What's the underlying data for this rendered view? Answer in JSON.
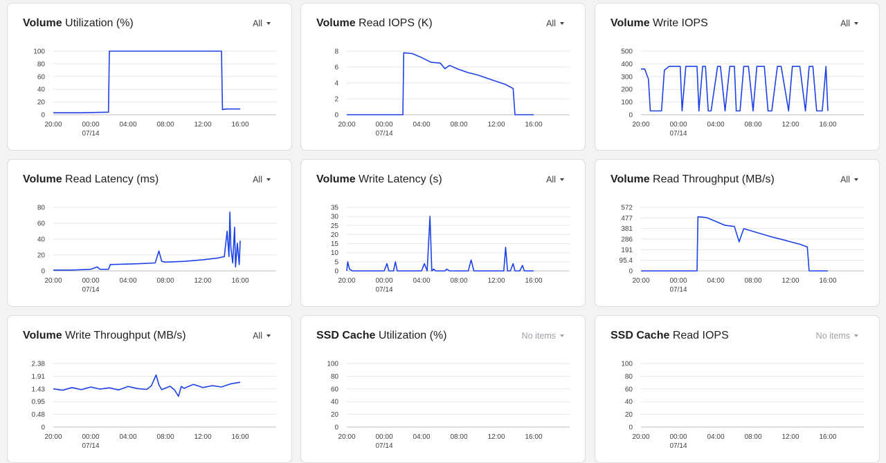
{
  "colors": {
    "line": "#1a40e8",
    "grid": "#e6e6e6",
    "axis": "#bdbdbd"
  },
  "x_ticks": [
    "20:00",
    "00:00",
    "04:00",
    "08:00",
    "12:00",
    "16:00"
  ],
  "x_date": "07/14",
  "cards": [
    {
      "title_bold": "Volume",
      "title_rest": " Utilization (%)",
      "filter": "All",
      "filter_disabled": false,
      "chart_data": {
        "type": "line",
        "title": "Volume Utilization (%)",
        "ylabels": [
          "100",
          "80",
          "60",
          "40",
          "20",
          "0"
        ],
        "ylim": [
          0,
          100
        ],
        "x_hours_from_20": [
          0,
          3,
          5.9,
          6.0,
          18.0,
          18.1,
          18.5,
          20
        ],
        "y": [
          3,
          3,
          4,
          100,
          100,
          8,
          9,
          9
        ]
      }
    },
    {
      "title_bold": "Volume",
      "title_rest": " Read IOPS (K)",
      "filter": "All",
      "filter_disabled": false,
      "chart_data": {
        "type": "line",
        "title": "Volume Read IOPS (K)",
        "ylabels": [
          "8",
          "6",
          "4",
          "2",
          "0"
        ],
        "ylim": [
          0,
          8
        ],
        "x_hours_from_20": [
          0,
          6.0,
          6.1,
          7,
          8,
          9,
          10,
          10.5,
          11,
          12,
          13,
          14,
          15,
          16,
          17,
          17.8,
          18.0,
          20
        ],
        "y": [
          0,
          0,
          7.8,
          7.7,
          7.2,
          6.6,
          6.5,
          5.8,
          6.2,
          5.7,
          5.3,
          5.0,
          4.6,
          4.2,
          3.8,
          3.3,
          0,
          0
        ]
      }
    },
    {
      "title_bold": "Volume",
      "title_rest": " Write IOPS",
      "filter": "All",
      "filter_disabled": false,
      "chart_data": {
        "type": "line",
        "title": "Volume Write IOPS",
        "ylabels": [
          "500",
          "400",
          "300",
          "200",
          "100",
          "0"
        ],
        "ylim": [
          0,
          500
        ],
        "x_hours_from_20": [
          0,
          0.4,
          0.8,
          1.0,
          2.0,
          2.2,
          2.5,
          3.0,
          4.2,
          4.4,
          4.8,
          5.0,
          6.0,
          6.2,
          6.6,
          6.9,
          7.2,
          7.5,
          8.2,
          8.5,
          9.0,
          9.5,
          10.0,
          10.2,
          10.6,
          11.0,
          11.5,
          12.0,
          12.4,
          13.2,
          13.6,
          14.0,
          14.6,
          15.0,
          15.8,
          16.2,
          16.6,
          17.0,
          17.6,
          18.0,
          18.4,
          18.8,
          19.4,
          19.8,
          20.0
        ],
        "y": [
          360,
          360,
          280,
          30,
          30,
          30,
          350,
          380,
          380,
          30,
          380,
          380,
          380,
          30,
          380,
          380,
          30,
          30,
          380,
          380,
          30,
          380,
          380,
          30,
          30,
          380,
          380,
          30,
          380,
          380,
          30,
          30,
          380,
          380,
          30,
          380,
          380,
          380,
          30,
          380,
          380,
          30,
          30,
          380,
          30
        ]
      }
    },
    {
      "title_bold": "Volume",
      "title_rest": " Read Latency (ms)",
      "filter": "All",
      "filter_disabled": false,
      "chart_data": {
        "type": "line",
        "title": "Volume Read Latency (ms)",
        "ylabels": [
          "80",
          "60",
          "40",
          "20",
          "0"
        ],
        "ylim": [
          0,
          80
        ],
        "x_hours_from_20": [
          0,
          2,
          4,
          4.7,
          5,
          5.9,
          6.1,
          9,
          10.9,
          11.3,
          11.6,
          12,
          14,
          16,
          17.5,
          18.3,
          18.6,
          18.8,
          18.9,
          19.0,
          19.2,
          19.4,
          19.5,
          19.7,
          19.9,
          20
        ],
        "y": [
          1,
          1,
          2,
          5,
          2,
          2,
          8,
          9,
          10,
          25,
          12,
          11,
          12,
          14,
          16,
          18,
          50,
          18,
          74,
          30,
          10,
          55,
          5,
          35,
          8,
          38
        ]
      }
    },
    {
      "title_bold": "Volume",
      "title_rest": " Write Latency (s)",
      "filter": "All",
      "filter_disabled": false,
      "chart_data": {
        "type": "line",
        "title": "Volume Write Latency (s)",
        "ylabels": [
          "35",
          "30",
          "25",
          "20",
          "15",
          "10",
          "5",
          "0"
        ],
        "ylim": [
          0,
          35
        ],
        "x_hours_from_20": [
          0,
          0.1,
          0.3,
          0.6,
          4,
          4.3,
          4.5,
          5,
          5.2,
          5.4,
          8,
          8.3,
          8.6,
          8.9,
          9.1,
          9.3,
          9.5,
          10.5,
          10.7,
          11.0,
          13,
          13.3,
          13.6,
          14,
          16.8,
          17.0,
          17.2,
          17.5,
          17.8,
          18.0,
          18.5,
          18.8,
          19,
          20
        ],
        "y": [
          0,
          5,
          1,
          0,
          0,
          4,
          0,
          0,
          5,
          0,
          0,
          4,
          0,
          30,
          0,
          1,
          0,
          0,
          1,
          0,
          0,
          6,
          0,
          0,
          0,
          13,
          0,
          0,
          4,
          0,
          0,
          3,
          0,
          0
        ]
      }
    },
    {
      "title_bold": "Volume",
      "title_rest": " Read Throughput (MB/s)",
      "filter": "All",
      "filter_disabled": false,
      "chart_data": {
        "type": "line",
        "title": "Volume Read Throughput (MB/s)",
        "ylabels": [
          "572",
          "477",
          "381",
          "286",
          "191",
          "95.4",
          "0"
        ],
        "ylim": [
          0,
          572
        ],
        "x_hours_from_20": [
          0,
          6.0,
          6.1,
          7,
          8,
          9,
          10,
          10.5,
          11,
          12,
          13,
          14,
          15,
          16,
          17,
          17.8,
          18.0,
          20
        ],
        "y": [
          0,
          0,
          487,
          480,
          445,
          410,
          400,
          262,
          380,
          355,
          330,
          305,
          285,
          262,
          240,
          215,
          0,
          0
        ]
      }
    },
    {
      "title_bold": "Volume",
      "title_rest": " Write Throughput (MB/s)",
      "filter": "All",
      "filter_disabled": false,
      "chart_data": {
        "type": "line",
        "title": "Volume Write Throughput (MB/s)",
        "ylabels": [
          "2.38",
          "1.91",
          "1.43",
          "0.95",
          "0.48",
          "0"
        ],
        "ylim": [
          0,
          2.38
        ],
        "x_hours_from_20": [
          0,
          1,
          2,
          3,
          4,
          5,
          6,
          7,
          8,
          9,
          10,
          10.5,
          11,
          11.3,
          11.6,
          12,
          12.5,
          13,
          13.4,
          13.7,
          14,
          15,
          16,
          17,
          18,
          19,
          20
        ],
        "y": [
          1.43,
          1.38,
          1.48,
          1.4,
          1.5,
          1.42,
          1.47,
          1.39,
          1.52,
          1.44,
          1.41,
          1.55,
          1.95,
          1.58,
          1.4,
          1.46,
          1.53,
          1.38,
          1.15,
          1.52,
          1.45,
          1.6,
          1.48,
          1.55,
          1.5,
          1.62,
          1.68
        ]
      }
    },
    {
      "title_bold": "SSD Cache",
      "title_rest": " Utilization (%)",
      "filter": "No items",
      "filter_disabled": true,
      "chart_data": {
        "type": "line",
        "title": "SSD Cache Utilization (%)",
        "ylabels": [
          "100",
          "80",
          "60",
          "40",
          "20",
          "0"
        ],
        "ylim": [
          0,
          100
        ],
        "x_hours_from_20": [],
        "y": []
      }
    },
    {
      "title_bold": "SSD Cache",
      "title_rest": " Read IOPS",
      "filter": "No items",
      "filter_disabled": true,
      "chart_data": {
        "type": "line",
        "title": "SSD Cache Read IOPS",
        "ylabels": [
          "100",
          "80",
          "60",
          "40",
          "20",
          "0"
        ],
        "ylim": [
          0,
          100
        ],
        "x_hours_from_20": [],
        "y": []
      }
    }
  ]
}
